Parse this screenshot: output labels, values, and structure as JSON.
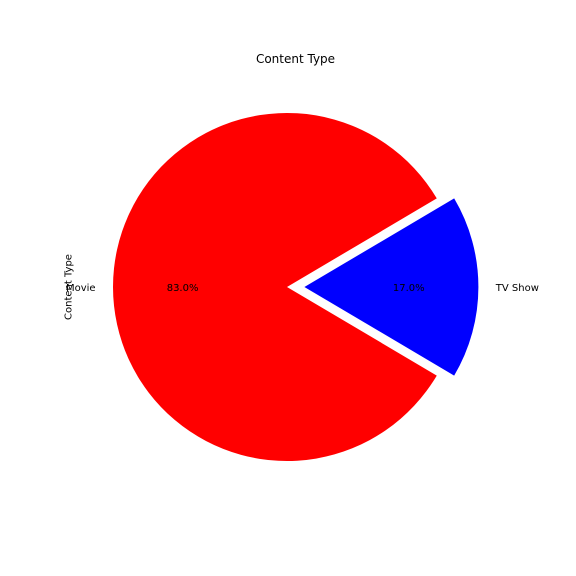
{
  "chart_data": {
    "type": "pie",
    "title": "Content Type",
    "ylabel": "Content Type",
    "slices": [
      {
        "label": "Movie",
        "value": 83.0,
        "pct_label": "83.0%",
        "color": "#ff0000",
        "exploded": false
      },
      {
        "label": "TV Show",
        "value": 17.0,
        "pct_label": "17.0%",
        "color": "#0000ff",
        "exploded": true
      }
    ]
  }
}
